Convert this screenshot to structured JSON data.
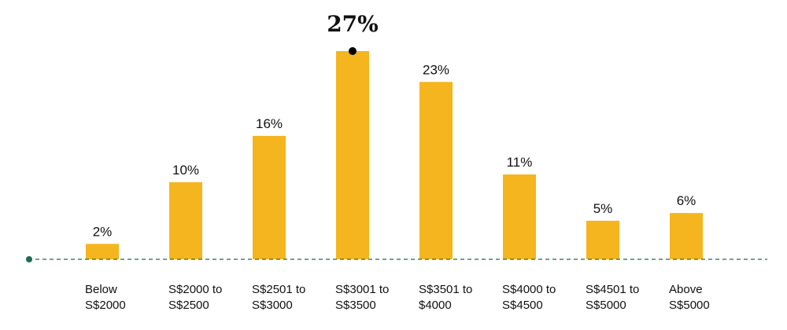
{
  "chart_data": {
    "type": "bar",
    "categories": [
      [
        "Below",
        "S$2000"
      ],
      [
        "S$2000 to",
        "S$2500"
      ],
      [
        "S$2501 to",
        "S$3000"
      ],
      [
        "S$3001 to",
        "S$3500"
      ],
      [
        "S$3501 to",
        "$4000"
      ],
      [
        "S$4000 to",
        "S$4500"
      ],
      [
        "S$4501 to",
        "S$5000"
      ],
      [
        "Above",
        "S$5000"
      ]
    ],
    "values": [
      2,
      10,
      16,
      27,
      23,
      11,
      5,
      6
    ],
    "data_labels": [
      "2%",
      "10%",
      "16%",
      "27%",
      "23%",
      "11%",
      "5%",
      "6%"
    ],
    "highlight_index": 3,
    "ylim": [
      0,
      27
    ],
    "grid": false,
    "colors": {
      "bar": "#F5B51E",
      "baseline": "#1F6B55",
      "marker": "#000000",
      "text": "#111111"
    }
  }
}
